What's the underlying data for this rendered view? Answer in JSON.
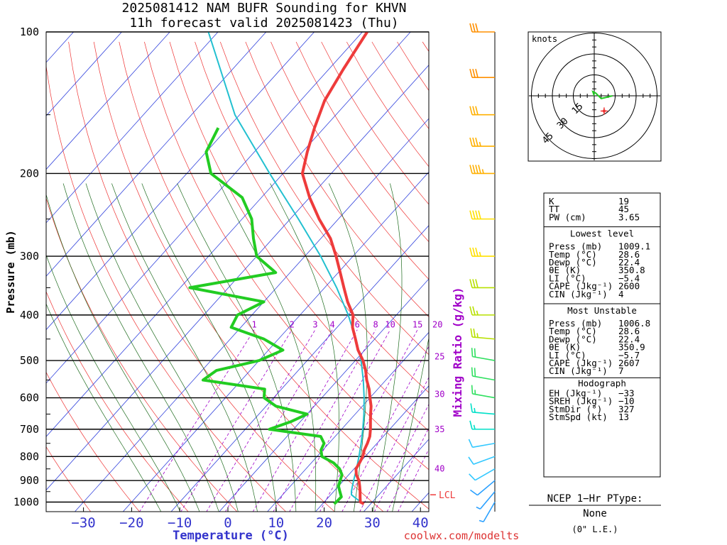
{
  "header": {
    "line1": "2025081412 NAM BUFR Sounding for KHVN",
    "line2": "11h forecast valid 2025081423 (Thu)"
  },
  "footer": {
    "site": "coolwx.com/modelts"
  },
  "chart_data": {
    "type": "line",
    "subtype": "skew-t log-p sounding",
    "xlabel": "Temperature (°C)",
    "ylabel": "Pressure (mb)",
    "mixing_ratio_label": "Mixing Ratio (g/kg)",
    "pressure_ticks": [
      100,
      200,
      300,
      400,
      500,
      600,
      700,
      800,
      900,
      1000
    ],
    "temperature_ticks": [
      -30,
      -20,
      -10,
      0,
      10,
      20,
      30,
      40
    ],
    "temperature_tick_labels": [
      "−30",
      "−20",
      "−10",
      "0",
      "10",
      "20",
      "30",
      "40"
    ],
    "mixing_ratio_top_labels": [
      "1",
      "2",
      "3",
      "4",
      "6",
      "8",
      "10",
      "15",
      "20"
    ],
    "mixing_ratio_side_labels": [
      "25",
      "30",
      "35",
      "40"
    ],
    "lcl_label": "LCL",
    "lcl_pressure": 965,
    "series": [
      {
        "name": "temperature",
        "color": "#ee3b3b",
        "points": [
          [
            1009,
            28.6
          ],
          [
            1000,
            27.5
          ],
          [
            975,
            26.5
          ],
          [
            950,
            25.5
          ],
          [
            925,
            24.4
          ],
          [
            900,
            23.2
          ],
          [
            875,
            21.6
          ],
          [
            850,
            20.4
          ],
          [
            825,
            20.0
          ],
          [
            800,
            19.5
          ],
          [
            775,
            18.6
          ],
          [
            750,
            18.0
          ],
          [
            725,
            17.2
          ],
          [
            700,
            16.0
          ],
          [
            675,
            14.6
          ],
          [
            650,
            13.2
          ],
          [
            625,
            11.8
          ],
          [
            600,
            10.0
          ],
          [
            575,
            8.2
          ],
          [
            550,
            6.0
          ],
          [
            525,
            4.0
          ],
          [
            500,
            1.6
          ],
          [
            475,
            -1.4
          ],
          [
            450,
            -4.0
          ],
          [
            425,
            -6.8
          ],
          [
            400,
            -9.0
          ],
          [
            375,
            -12.6
          ],
          [
            350,
            -16.0
          ],
          [
            325,
            -19.6
          ],
          [
            300,
            -23.5
          ],
          [
            275,
            -28.0
          ],
          [
            250,
            -34.0
          ],
          [
            225,
            -40.0
          ],
          [
            200,
            -46.0
          ],
          [
            180,
            -49.0
          ],
          [
            160,
            -52.0
          ],
          [
            140,
            -55.0
          ],
          [
            120,
            -57.0
          ],
          [
            100,
            -59.0
          ]
        ]
      },
      {
        "name": "dewpoint",
        "color": "#22cc22",
        "points": [
          [
            1009,
            22.4
          ],
          [
            1000,
            22.5
          ],
          [
            975,
            22.6
          ],
          [
            950,
            21.3
          ],
          [
            925,
            20.0
          ],
          [
            900,
            19.3
          ],
          [
            875,
            18.6
          ],
          [
            850,
            17.0
          ],
          [
            825,
            14.6
          ],
          [
            800,
            11.0
          ],
          [
            775,
            9.6
          ],
          [
            750,
            9.0
          ],
          [
            725,
            7.0
          ],
          [
            700,
            -5.0
          ],
          [
            675,
            -2.0
          ],
          [
            650,
            0.0
          ],
          [
            625,
            -8.0
          ],
          [
            600,
            -12.0
          ],
          [
            575,
            -13.5
          ],
          [
            550,
            -28.0
          ],
          [
            525,
            -27.0
          ],
          [
            500,
            -20.0
          ],
          [
            475,
            -17.0
          ],
          [
            450,
            -23.0
          ],
          [
            425,
            -32.0
          ],
          [
            400,
            -33.0
          ],
          [
            375,
            -30.0
          ],
          [
            350,
            -48.0
          ],
          [
            325,
            -33.0
          ],
          [
            300,
            -40.0
          ],
          [
            275,
            -44.0
          ],
          [
            250,
            -48.0
          ],
          [
            225,
            -54.0
          ],
          [
            200,
            -65.0
          ],
          [
            180,
            -70.0
          ],
          [
            160,
            -72.0
          ]
        ]
      },
      {
        "name": "parcel",
        "color": "#22c0d0",
        "points": [
          [
            1009,
            28.6
          ],
          [
            985,
            26.2
          ],
          [
            965,
            24.3
          ],
          [
            950,
            23.7
          ],
          [
            925,
            22.9
          ],
          [
            900,
            22.1
          ],
          [
            850,
            20.5
          ],
          [
            800,
            18.7
          ],
          [
            750,
            16.7
          ],
          [
            700,
            14.4
          ],
          [
            650,
            11.8
          ],
          [
            600,
            8.8
          ],
          [
            550,
            5.3
          ],
          [
            500,
            1.2
          ],
          [
            450,
            -3.9
          ],
          [
            400,
            -10.0
          ],
          [
            350,
            -17.5
          ],
          [
            300,
            -26.7
          ],
          [
            250,
            -38.3
          ],
          [
            200,
            -52.8
          ],
          [
            150,
            -71.0
          ],
          [
            100,
            -92.0
          ]
        ]
      }
    ],
    "wind_barbs": {
      "colors_by_height": [
        "#2aa0ff",
        "#33c8ff",
        "#00e0c8",
        "#30e060",
        "#b8e000",
        "#ffe000",
        "#ffb000",
        "#ff9000"
      ],
      "levels": [
        {
          "p": 1000,
          "dir": 210,
          "spd": 5
        },
        {
          "p": 950,
          "dir": 220,
          "spd": 5
        },
        {
          "p": 900,
          "dir": 230,
          "spd": 10
        },
        {
          "p": 850,
          "dir": 240,
          "spd": 10
        },
        {
          "p": 800,
          "dir": 250,
          "spd": 10
        },
        {
          "p": 750,
          "dir": 260,
          "spd": 10
        },
        {
          "p": 700,
          "dir": 270,
          "spd": 15
        },
        {
          "p": 650,
          "dir": 275,
          "spd": 15
        },
        {
          "p": 600,
          "dir": 280,
          "spd": 15
        },
        {
          "p": 550,
          "dir": 280,
          "spd": 20
        },
        {
          "p": 500,
          "dir": 280,
          "spd": 20
        },
        {
          "p": 450,
          "dir": 275,
          "spd": 25
        },
        {
          "p": 400,
          "dir": 270,
          "spd": 25
        },
        {
          "p": 350,
          "dir": 270,
          "spd": 30
        },
        {
          "p": 300,
          "dir": 270,
          "spd": 35
        },
        {
          "p": 250,
          "dir": 270,
          "spd": 40
        },
        {
          "p": 200,
          "dir": 270,
          "spd": 45
        },
        {
          "p": 175,
          "dir": 270,
          "spd": 35
        },
        {
          "p": 150,
          "dir": 270,
          "spd": 30
        },
        {
          "p": 125,
          "dir": 270,
          "spd": 30
        },
        {
          "p": 100,
          "dir": 270,
          "spd": 30
        }
      ]
    },
    "hodograph": {
      "units_label": "knots",
      "ring_labels": [
        "15",
        "30",
        "45"
      ],
      "points": [
        [
          0,
          0
        ],
        [
          -1,
          3
        ],
        [
          1,
          2
        ],
        [
          3,
          0
        ],
        [
          5,
          -2
        ],
        [
          9,
          -1
        ],
        [
          13,
          0
        ]
      ],
      "storm_motion": {
        "dir": 327,
        "spd": 13
      }
    }
  },
  "indices": {
    "top": [
      {
        "label": "K",
        "value": "19"
      },
      {
        "label": "TT",
        "value": "45"
      },
      {
        "label": "PW (cm)",
        "value": "3.65"
      }
    ],
    "lowest_level": {
      "title": "Lowest level",
      "rows": [
        {
          "label": "Press (mb)",
          "value": "1009.1"
        },
        {
          "label": "Temp (°C)",
          "value": "28.6"
        },
        {
          "label": "Dewp (°C)",
          "value": "22.4"
        },
        {
          "label": "θE (K)",
          "value": "350.8"
        },
        {
          "label": "LI (°C)",
          "value": "−5.4"
        },
        {
          "label": "CAPE (Jkg⁻¹)",
          "value": "2600"
        },
        {
          "label": "CIN (Jkg⁻¹)",
          "value": "4"
        }
      ]
    },
    "most_unstable": {
      "title": "Most Unstable",
      "rows": [
        {
          "label": "Press (mb)",
          "value": "1006.8"
        },
        {
          "label": "Temp (°C)",
          "value": "28.6"
        },
        {
          "label": "Dewp (°C)",
          "value": "22.4"
        },
        {
          "label": "θE (K)",
          "value": "350.9"
        },
        {
          "label": "LI (°C)",
          "value": "−5.7"
        },
        {
          "label": "CAPE (Jkg⁻¹)",
          "value": "2607"
        },
        {
          "label": "CIN (Jkg⁻¹)",
          "value": "7"
        }
      ]
    },
    "hodograph": {
      "title": "Hodograph",
      "rows": [
        {
          "label": "EH (Jkg⁻¹)",
          "value": "−33"
        },
        {
          "label": "SREH (Jkg⁻¹)",
          "value": "−10"
        },
        {
          "label": "StmDir (°)",
          "value": "327"
        },
        {
          "label": "StmSpd (kt)",
          "value": "13"
        }
      ]
    }
  },
  "ptype": {
    "title": "NCEP 1−Hr PType:",
    "value": "None",
    "accum": "(0\" L.E.)"
  }
}
